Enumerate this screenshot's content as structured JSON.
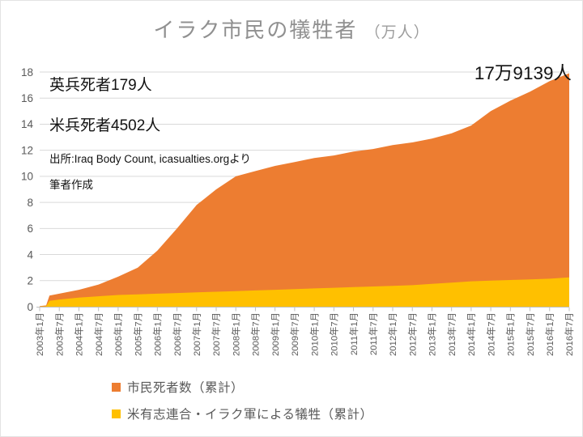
{
  "title": {
    "main": "イラク市民の犠牲者",
    "unit": "（万人）"
  },
  "annotations": {
    "uk_deaths": "英兵死者179人",
    "us_deaths": "米兵死者4502人",
    "source_line1": "出所:Iraq Body Count, icasualties.orgより",
    "source_line2": "筆者作成",
    "final_value": "17万9139人"
  },
  "legend": [
    {
      "label": "市民死者数（累計）",
      "color": "#ED7D31"
    },
    {
      "label": "米有志連合・イラク軍による犠牲（累計）",
      "color": "#FFC000"
    }
  ],
  "chart_data": {
    "type": "area",
    "title": "イラク市民の犠牲者（万人）",
    "xlabel": "",
    "ylabel": "万人",
    "ylim": [
      0,
      18
    ],
    "y_ticks": [
      0,
      2,
      4,
      6,
      8,
      10,
      12,
      14,
      16,
      18
    ],
    "grid": true,
    "legend_position": "bottom-left",
    "annotations": [
      "英兵死者179人",
      "米兵死者4502人",
      "出所:Iraq Body Count, icasualties.orgより 筆者作成",
      "17万9139人"
    ],
    "categories": [
      "2003年1月",
      "2003年7月",
      "2004年1月",
      "2004年7月",
      "2005年1月",
      "2005年7月",
      "2006年1月",
      "2006年7月",
      "2007年1月",
      "2007年7月",
      "2008年1月",
      "2008年7月",
      "2009年1月",
      "2009年7月",
      "2010年1月",
      "2010年7月",
      "2011年1月",
      "2011年7月",
      "2012年1月",
      "2012年7月",
      "2013年1月",
      "2013年7月",
      "2014年1月",
      "2014年7月",
      "2015年1月",
      "2015年7月",
      "2016年1月",
      "2016年7月"
    ],
    "series": [
      {
        "name": "市民死者数（累計）",
        "color": "#ED7D31",
        "values": [
          0.05,
          1.0,
          1.3,
          1.7,
          2.3,
          3.0,
          4.3,
          6.0,
          7.8,
          9.0,
          10.0,
          10.4,
          10.8,
          11.1,
          11.4,
          11.6,
          11.9,
          12.1,
          12.4,
          12.6,
          12.9,
          13.3,
          13.9,
          15.0,
          15.8,
          16.5,
          17.3,
          17.91
        ],
        "lead_points": [
          [
            0.33,
            0.1
          ],
          [
            0.5,
            0.85
          ]
        ]
      },
      {
        "name": "米有志連合・イラク軍による犠牲（累計）",
        "color": "#FFC000",
        "values": [
          0.02,
          0.55,
          0.7,
          0.8,
          0.9,
          0.95,
          1.0,
          1.05,
          1.1,
          1.15,
          1.2,
          1.25,
          1.3,
          1.35,
          1.4,
          1.45,
          1.5,
          1.55,
          1.6,
          1.65,
          1.75,
          1.85,
          1.95,
          2.0,
          2.05,
          2.1,
          2.15,
          2.25
        ],
        "lead_points": [
          [
            0.33,
            0.04
          ],
          [
            0.5,
            0.45
          ]
        ]
      }
    ],
    "colors": {
      "grid": "#D9D9D9",
      "axis": "#BFBFBF",
      "tick_text": "#595959"
    }
  }
}
